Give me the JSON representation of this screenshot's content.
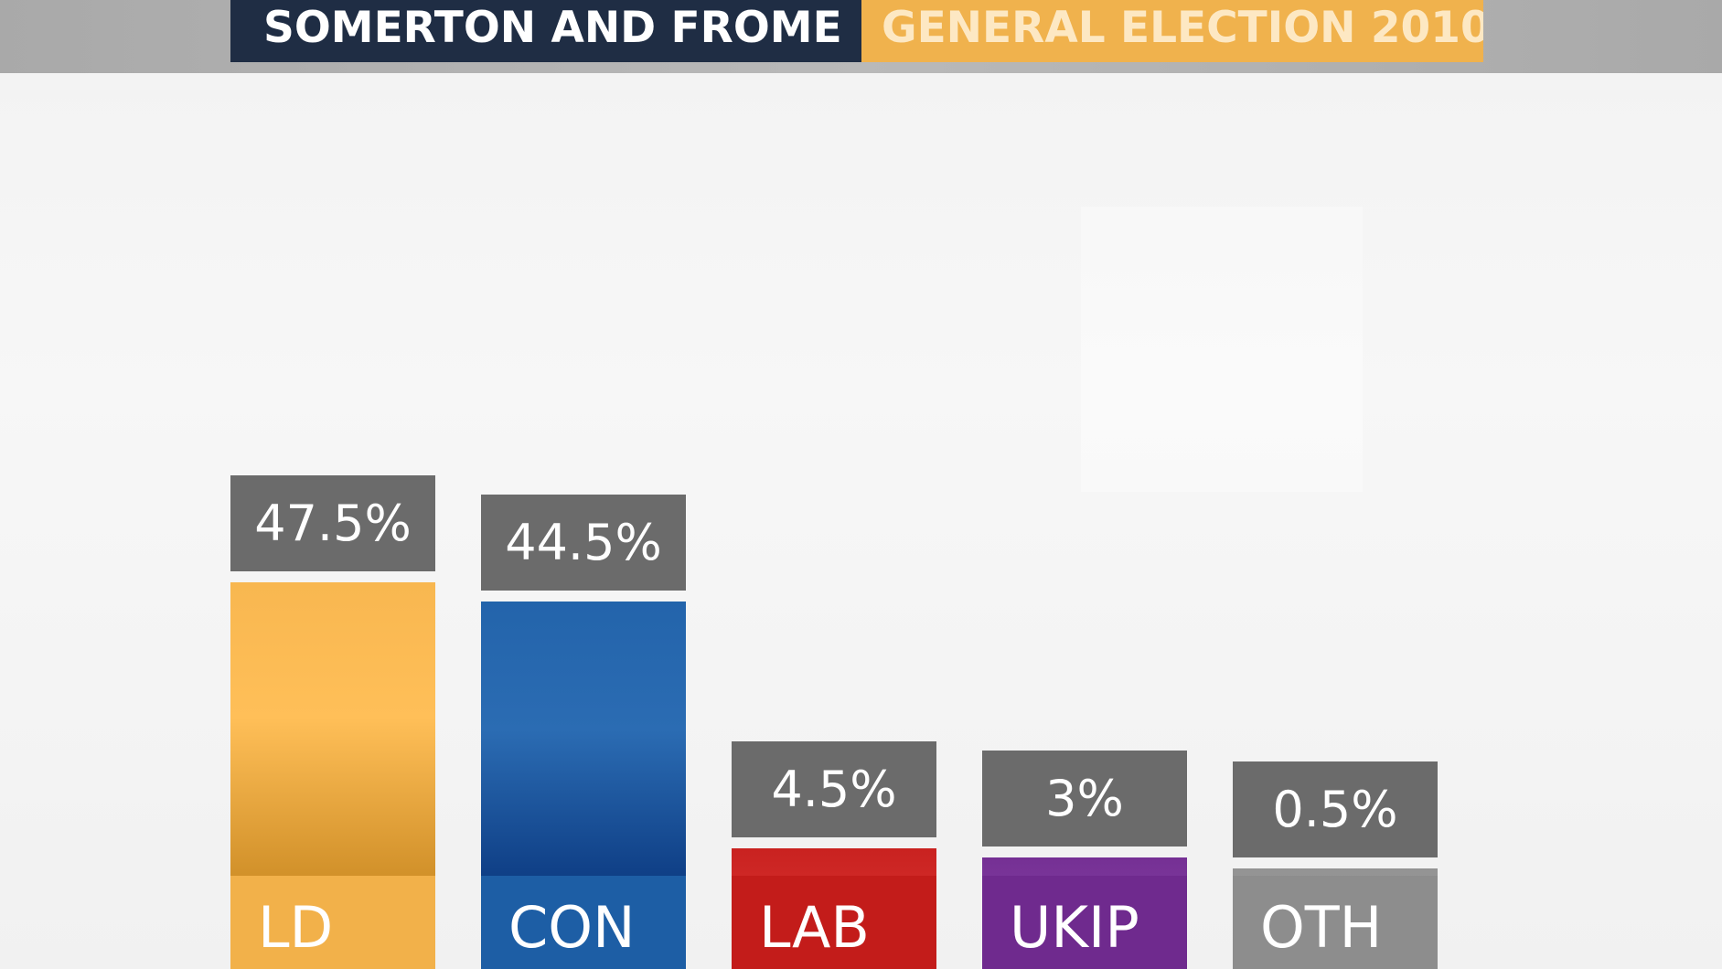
{
  "header": {
    "title": "SOMERTON AND FROME",
    "subtitle": "GENERAL ELECTION 2010"
  },
  "colors": {
    "title_bg": "#1f2d44",
    "subtitle_bg": "#f0b24d",
    "value_box_bg": "#6b6b6b",
    "LD": "#f2b14a",
    "CON": "#1d5ea5",
    "LAB": "#c31c1a",
    "UKIP": "#6f2a8e",
    "OTH": "#8d8d8d"
  },
  "chart_data": {
    "type": "bar",
    "title": "SOMERTON AND FROME",
    "subtitle": "GENERAL ELECTION 2010",
    "categories": [
      "LD",
      "CON",
      "LAB",
      "UKIP",
      "OTH"
    ],
    "values": [
      47.5,
      44.5,
      4.5,
      3,
      0.5
    ],
    "value_labels": [
      "47.5%",
      "44.5%",
      "4.5%",
      "3%",
      "0.5%"
    ],
    "unit": "%",
    "xlabel": "",
    "ylabel": "",
    "grid": false,
    "legend": "none"
  }
}
